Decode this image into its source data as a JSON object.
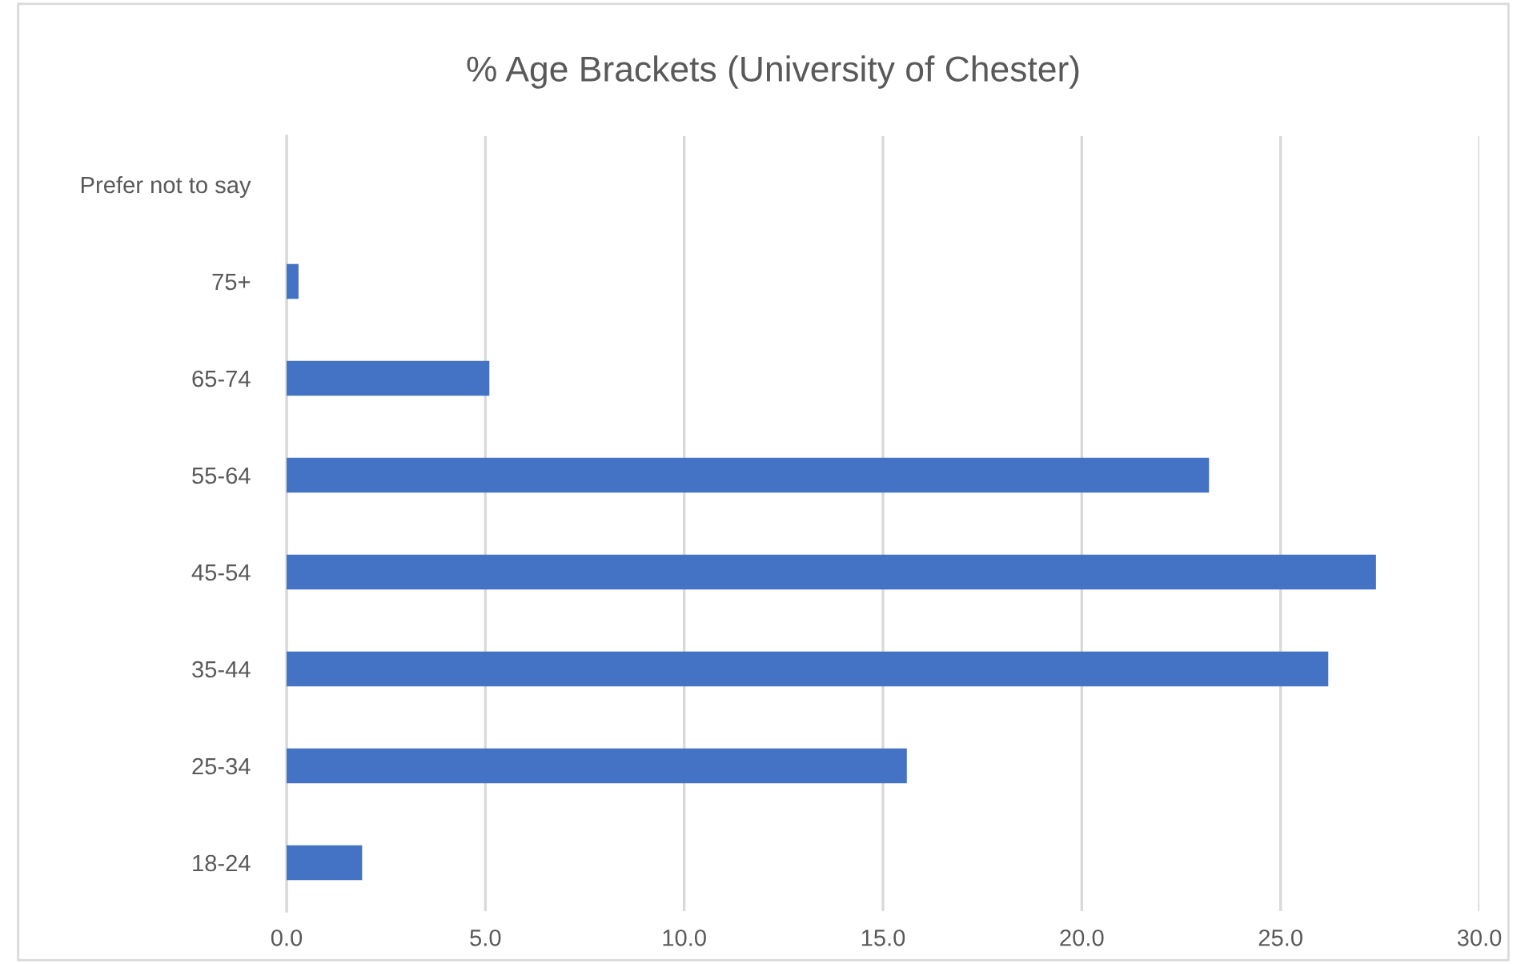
{
  "chart_data": {
    "type": "bar",
    "orientation": "horizontal",
    "title": "% Age Brackets (University of Chester)",
    "categories": [
      "Prefer not to say",
      "75+",
      "65-74",
      "55-64",
      "45-54",
      "35-44",
      "25-34",
      "18-24"
    ],
    "values": [
      0,
      0.3,
      5.1,
      23.2,
      27.4,
      26.2,
      15.6,
      1.9
    ],
    "color": "#4472c4",
    "xlim": [
      0,
      30
    ],
    "xticks": [
      {
        "value": 0,
        "label": "0.0"
      },
      {
        "value": 5,
        "label": "5.0"
      },
      {
        "value": 10,
        "label": "10.0"
      },
      {
        "value": 15,
        "label": "15.0"
      },
      {
        "value": 20,
        "label": "20.0"
      },
      {
        "value": 25,
        "label": "25.0"
      },
      {
        "value": 30,
        "label": "30.0"
      }
    ],
    "grid": "x"
  }
}
